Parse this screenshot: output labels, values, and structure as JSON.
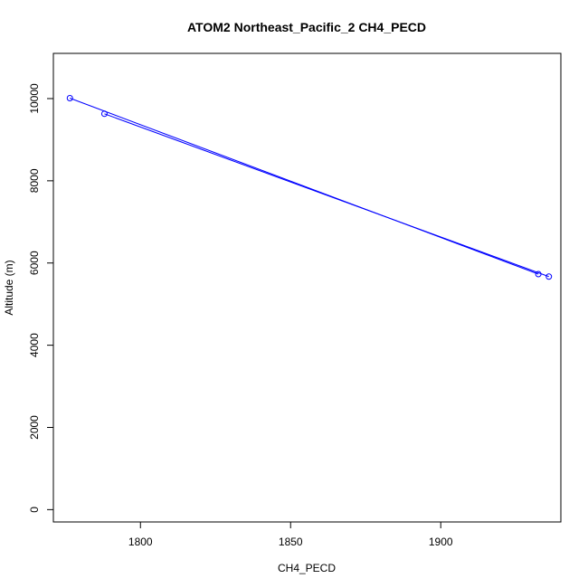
{
  "chart_data": {
    "type": "line",
    "title": "ATOM2 Northeast_Pacific_2 CH4_PECD",
    "xlabel": "CH4_PECD",
    "ylabel": "Altitude (m)",
    "xlim": [
      1771,
      1940
    ],
    "ylim": [
      -300,
      11100
    ],
    "x_ticks": [
      1800,
      1850,
      1900
    ],
    "x_tick_labels": [
      "1800",
      "1850",
      "1900"
    ],
    "y_ticks": [
      0,
      2000,
      4000,
      6000,
      8000,
      10000
    ],
    "y_tick_labels": [
      "0",
      "2000",
      "4000",
      "6000",
      "8000",
      "10000"
    ],
    "grid": false,
    "series": [
      {
        "color": "#0000ff",
        "marker": "open-circle",
        "points": [
          {
            "x": 1776.5,
            "y": 10010
          },
          {
            "x": 1788.0,
            "y": 9630
          },
          {
            "x": 1932.5,
            "y": 5730
          },
          {
            "x": 1936.0,
            "y": 5670
          }
        ],
        "segments": [
          {
            "from": {
              "x": 1776.5,
              "y": 10010
            },
            "to": {
              "x": 1932.5,
              "y": 5730
            }
          },
          {
            "from": {
              "x": 1788.0,
              "y": 9630
            },
            "to": {
              "x": 1936.0,
              "y": 5670
            }
          }
        ]
      }
    ]
  }
}
